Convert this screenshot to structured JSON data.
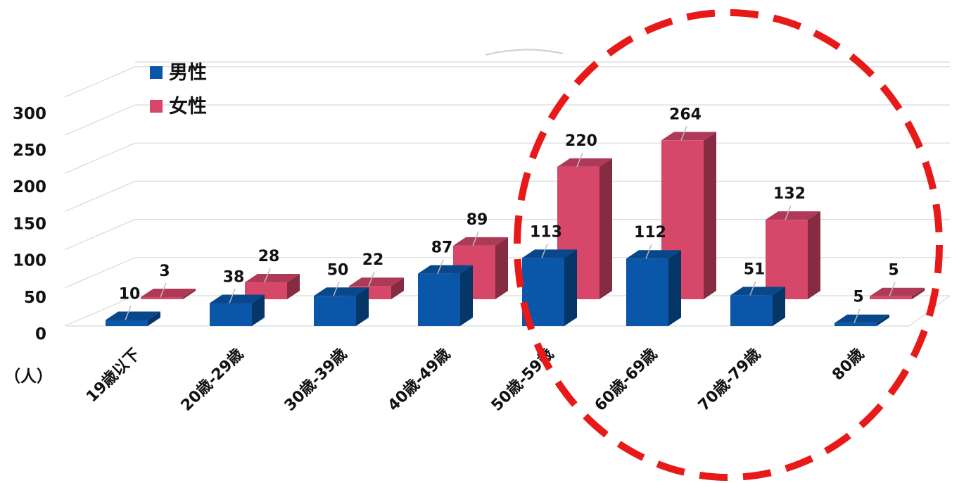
{
  "chart_data": {
    "type": "bar",
    "categories": [
      "19歳以下",
      "20歳-29歳",
      "30歳-39歳",
      "40歳-49歳",
      "50歳-59歳",
      "60歳-69歳",
      "70歳-79歳",
      "80歳"
    ],
    "series": [
      {
        "name": "男性",
        "values": [
          10,
          38,
          50,
          87,
          113,
          112,
          51,
          5
        ],
        "color": "#0a56a8"
      },
      {
        "name": "女性",
        "values": [
          3,
          28,
          22,
          89,
          220,
          264,
          132,
          5
        ],
        "color": "#d6476a"
      }
    ],
    "unit_label": "（人）",
    "y_ticks": [
      "0",
      "50",
      "100",
      "150",
      "200",
      "250",
      "300"
    ],
    "ylim": [
      0,
      300
    ],
    "grid": true,
    "legend_position": "top-left",
    "highlight": {
      "shape": "dashed-circle",
      "color": "#e81919",
      "categories": [
        "60歳-69歳",
        "70歳-79歳",
        "80歳"
      ]
    }
  }
}
